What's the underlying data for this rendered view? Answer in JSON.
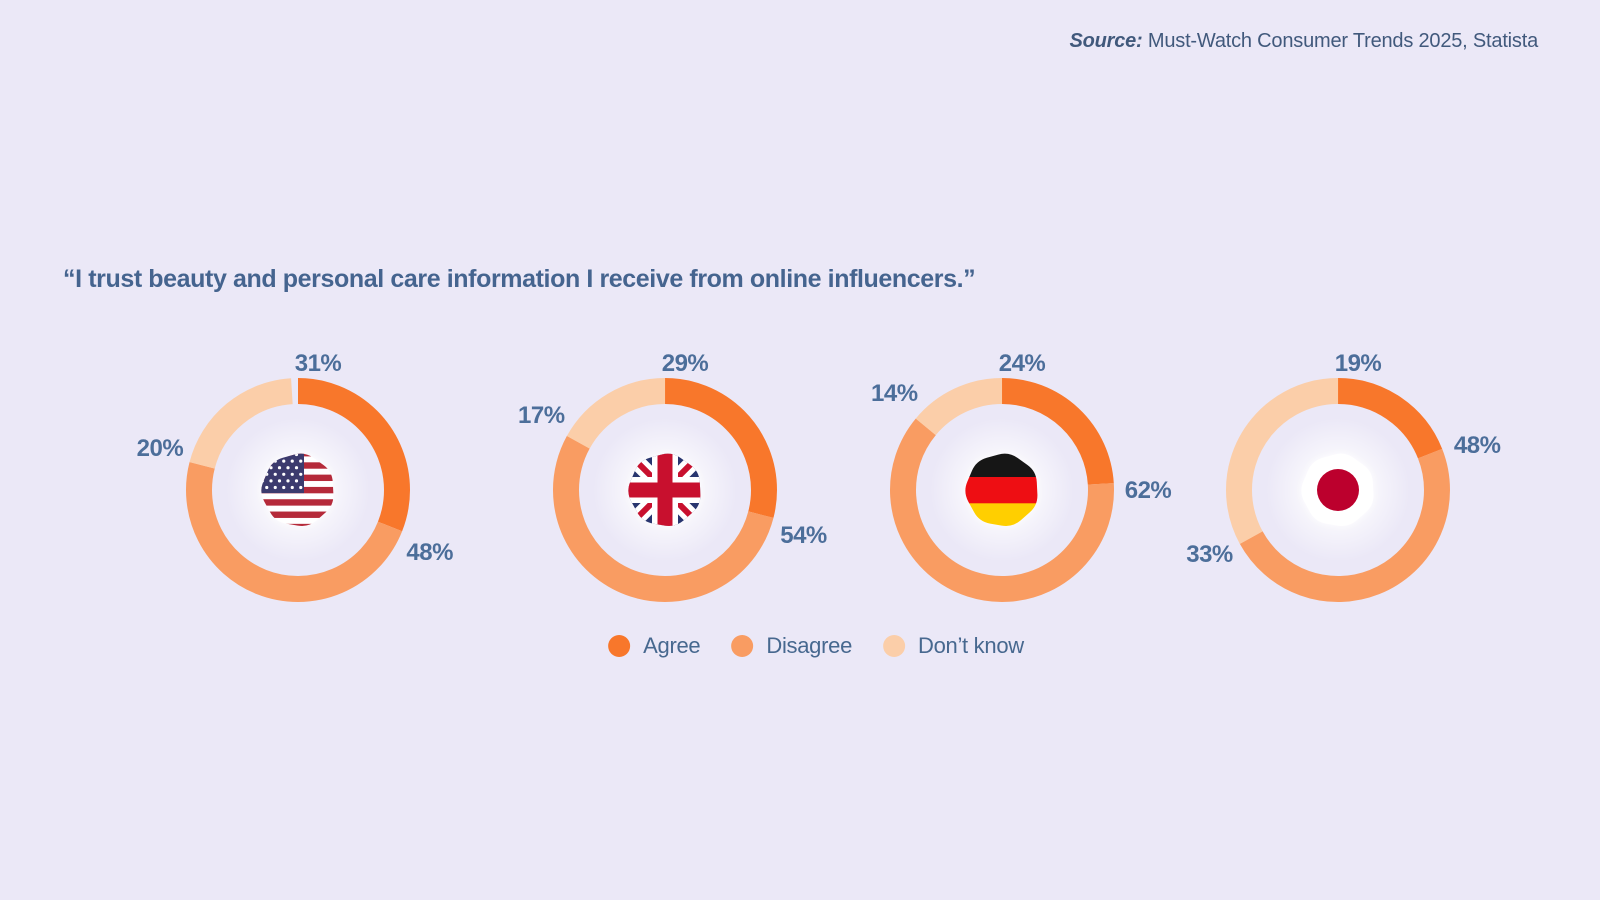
{
  "source": {
    "prefix": "Source:",
    "text": " Must-Watch Consumer Trends 2025, Statista"
  },
  "colors": {
    "background": "#EBE8F7",
    "text_slate": "#4C6E9A",
    "agree": "#F8772B",
    "disagree": "#F99C62",
    "dont_know": "#FBCEA9"
  },
  "chart_data": {
    "type": "pie",
    "variant": "donut-small-multiples",
    "title": "“I trust beauty and personal care information I receive from online influencers.”",
    "unit": "%",
    "start_angle": "12 o'clock, clockwise",
    "legend_position": "bottom-center",
    "legend_items": [
      {
        "key": "agree",
        "label": "Agree",
        "color": "#F8772B"
      },
      {
        "key": "disagree",
        "label": "Disagree",
        "color": "#F99C62"
      },
      {
        "key": "dont_know",
        "label": "Don’t know",
        "color": "#FBCEA9"
      }
    ],
    "groups": [
      {
        "country": "United States",
        "flag": "us",
        "values": {
          "agree": 31,
          "disagree": 48,
          "dont_know": 20
        },
        "labels": [
          "31%",
          "48%",
          "20%"
        ]
      },
      {
        "country": "United Kingdom",
        "flag": "gb",
        "values": {
          "agree": 29,
          "disagree": 54,
          "dont_know": 17
        },
        "labels": [
          "29%",
          "54%",
          "17%"
        ]
      },
      {
        "country": "Germany",
        "flag": "de",
        "values": {
          "agree": 24,
          "disagree": 62,
          "dont_know": 14
        },
        "labels": [
          "24%",
          "62%",
          "14%"
        ]
      },
      {
        "country": "Japan",
        "flag": "jp",
        "values": {
          "agree": 19,
          "disagree": 48,
          "dont_know": 33
        },
        "labels": [
          "19%",
          "48%",
          "33%"
        ]
      }
    ]
  }
}
